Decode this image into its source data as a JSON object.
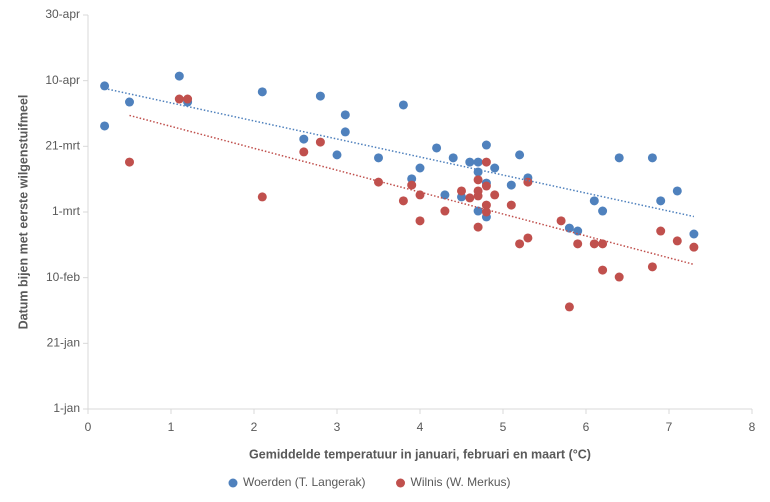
{
  "chart_data": {
    "type": "scatter",
    "xlabel": "Gemiddelde temperatuur in januari, februari en maart (°C)",
    "ylabel": "Datum bijen met eerste wilgenstuifmeel",
    "xlim": [
      0,
      8
    ],
    "xticks": [
      0,
      1,
      2,
      3,
      4,
      5,
      6,
      7,
      8
    ],
    "ylim": [
      1,
      121
    ],
    "yticks": [
      {
        "value": 1,
        "label": "1-jan"
      },
      {
        "value": 21,
        "label": "21-jan"
      },
      {
        "value": 41,
        "label": "10-feb"
      },
      {
        "value": 61,
        "label": "1-mrt"
      },
      {
        "value": 81,
        "label": "21-mrt"
      },
      {
        "value": 101,
        "label": "10-apr"
      },
      {
        "value": 121,
        "label": "30-apr"
      }
    ],
    "trendline": true,
    "series": [
      {
        "name": "Woerden (T. Langerak)",
        "color": "#4f81bd",
        "x": [
          0.2,
          0.2,
          0.5,
          1.1,
          1.2,
          2.1,
          2.8,
          2.6,
          3.1,
          3.1,
          3.0,
          3.5,
          3.8,
          4.0,
          3.9,
          4.2,
          4.4,
          4.3,
          4.6,
          4.7,
          4.7,
          4.8,
          4.9,
          4.8,
          4.7,
          4.8,
          4.5,
          5.2,
          5.1,
          5.3,
          5.8,
          5.9,
          6.1,
          6.2,
          6.4,
          6.8,
          6.9,
          7.1,
          7.3
        ],
        "values": [
          87.2,
          99.4,
          94.5,
          102.4,
          94.5,
          97.6,
          96.3,
          83.2,
          90.6,
          85.4,
          78.4,
          77.5,
          93.6,
          74.4,
          71.1,
          80.5,
          77.5,
          66.2,
          76.2,
          76.2,
          73.2,
          81.4,
          74.4,
          69.8,
          61.3,
          59.5,
          65.6,
          78.4,
          69.2,
          71.4,
          56.1,
          55.2,
          64.4,
          61.3,
          77.5,
          77.5,
          64.4,
          67.4,
          54.3
        ]
      },
      {
        "name": "Wilnis (W. Merkus)",
        "color": "#c0504d",
        "x": [
          0.5,
          1.1,
          1.2,
          2.1,
          2.6,
          2.8,
          3.5,
          3.8,
          3.9,
          4.0,
          4.0,
          4.3,
          4.5,
          4.6,
          4.7,
          4.7,
          4.7,
          4.8,
          4.7,
          4.8,
          4.8,
          4.8,
          4.9,
          5.1,
          5.2,
          5.3,
          5.3,
          5.7,
          5.8,
          5.9,
          6.1,
          6.2,
          6.2,
          6.4,
          6.8,
          6.9,
          7.1,
          7.3
        ],
        "values": [
          76.2,
          95.4,
          95.4,
          65.6,
          79.3,
          82.3,
          70.1,
          64.4,
          69.2,
          58.3,
          66.2,
          61.3,
          67.4,
          65.3,
          67.4,
          65.9,
          70.8,
          68.9,
          56.4,
          63.1,
          61.0,
          76.2,
          66.2,
          63.1,
          51.3,
          53.1,
          70.1,
          58.3,
          32.1,
          51.3,
          51.3,
          51.3,
          43.3,
          41.2,
          44.3,
          55.2,
          52.2,
          50.3
        ]
      }
    ]
  }
}
